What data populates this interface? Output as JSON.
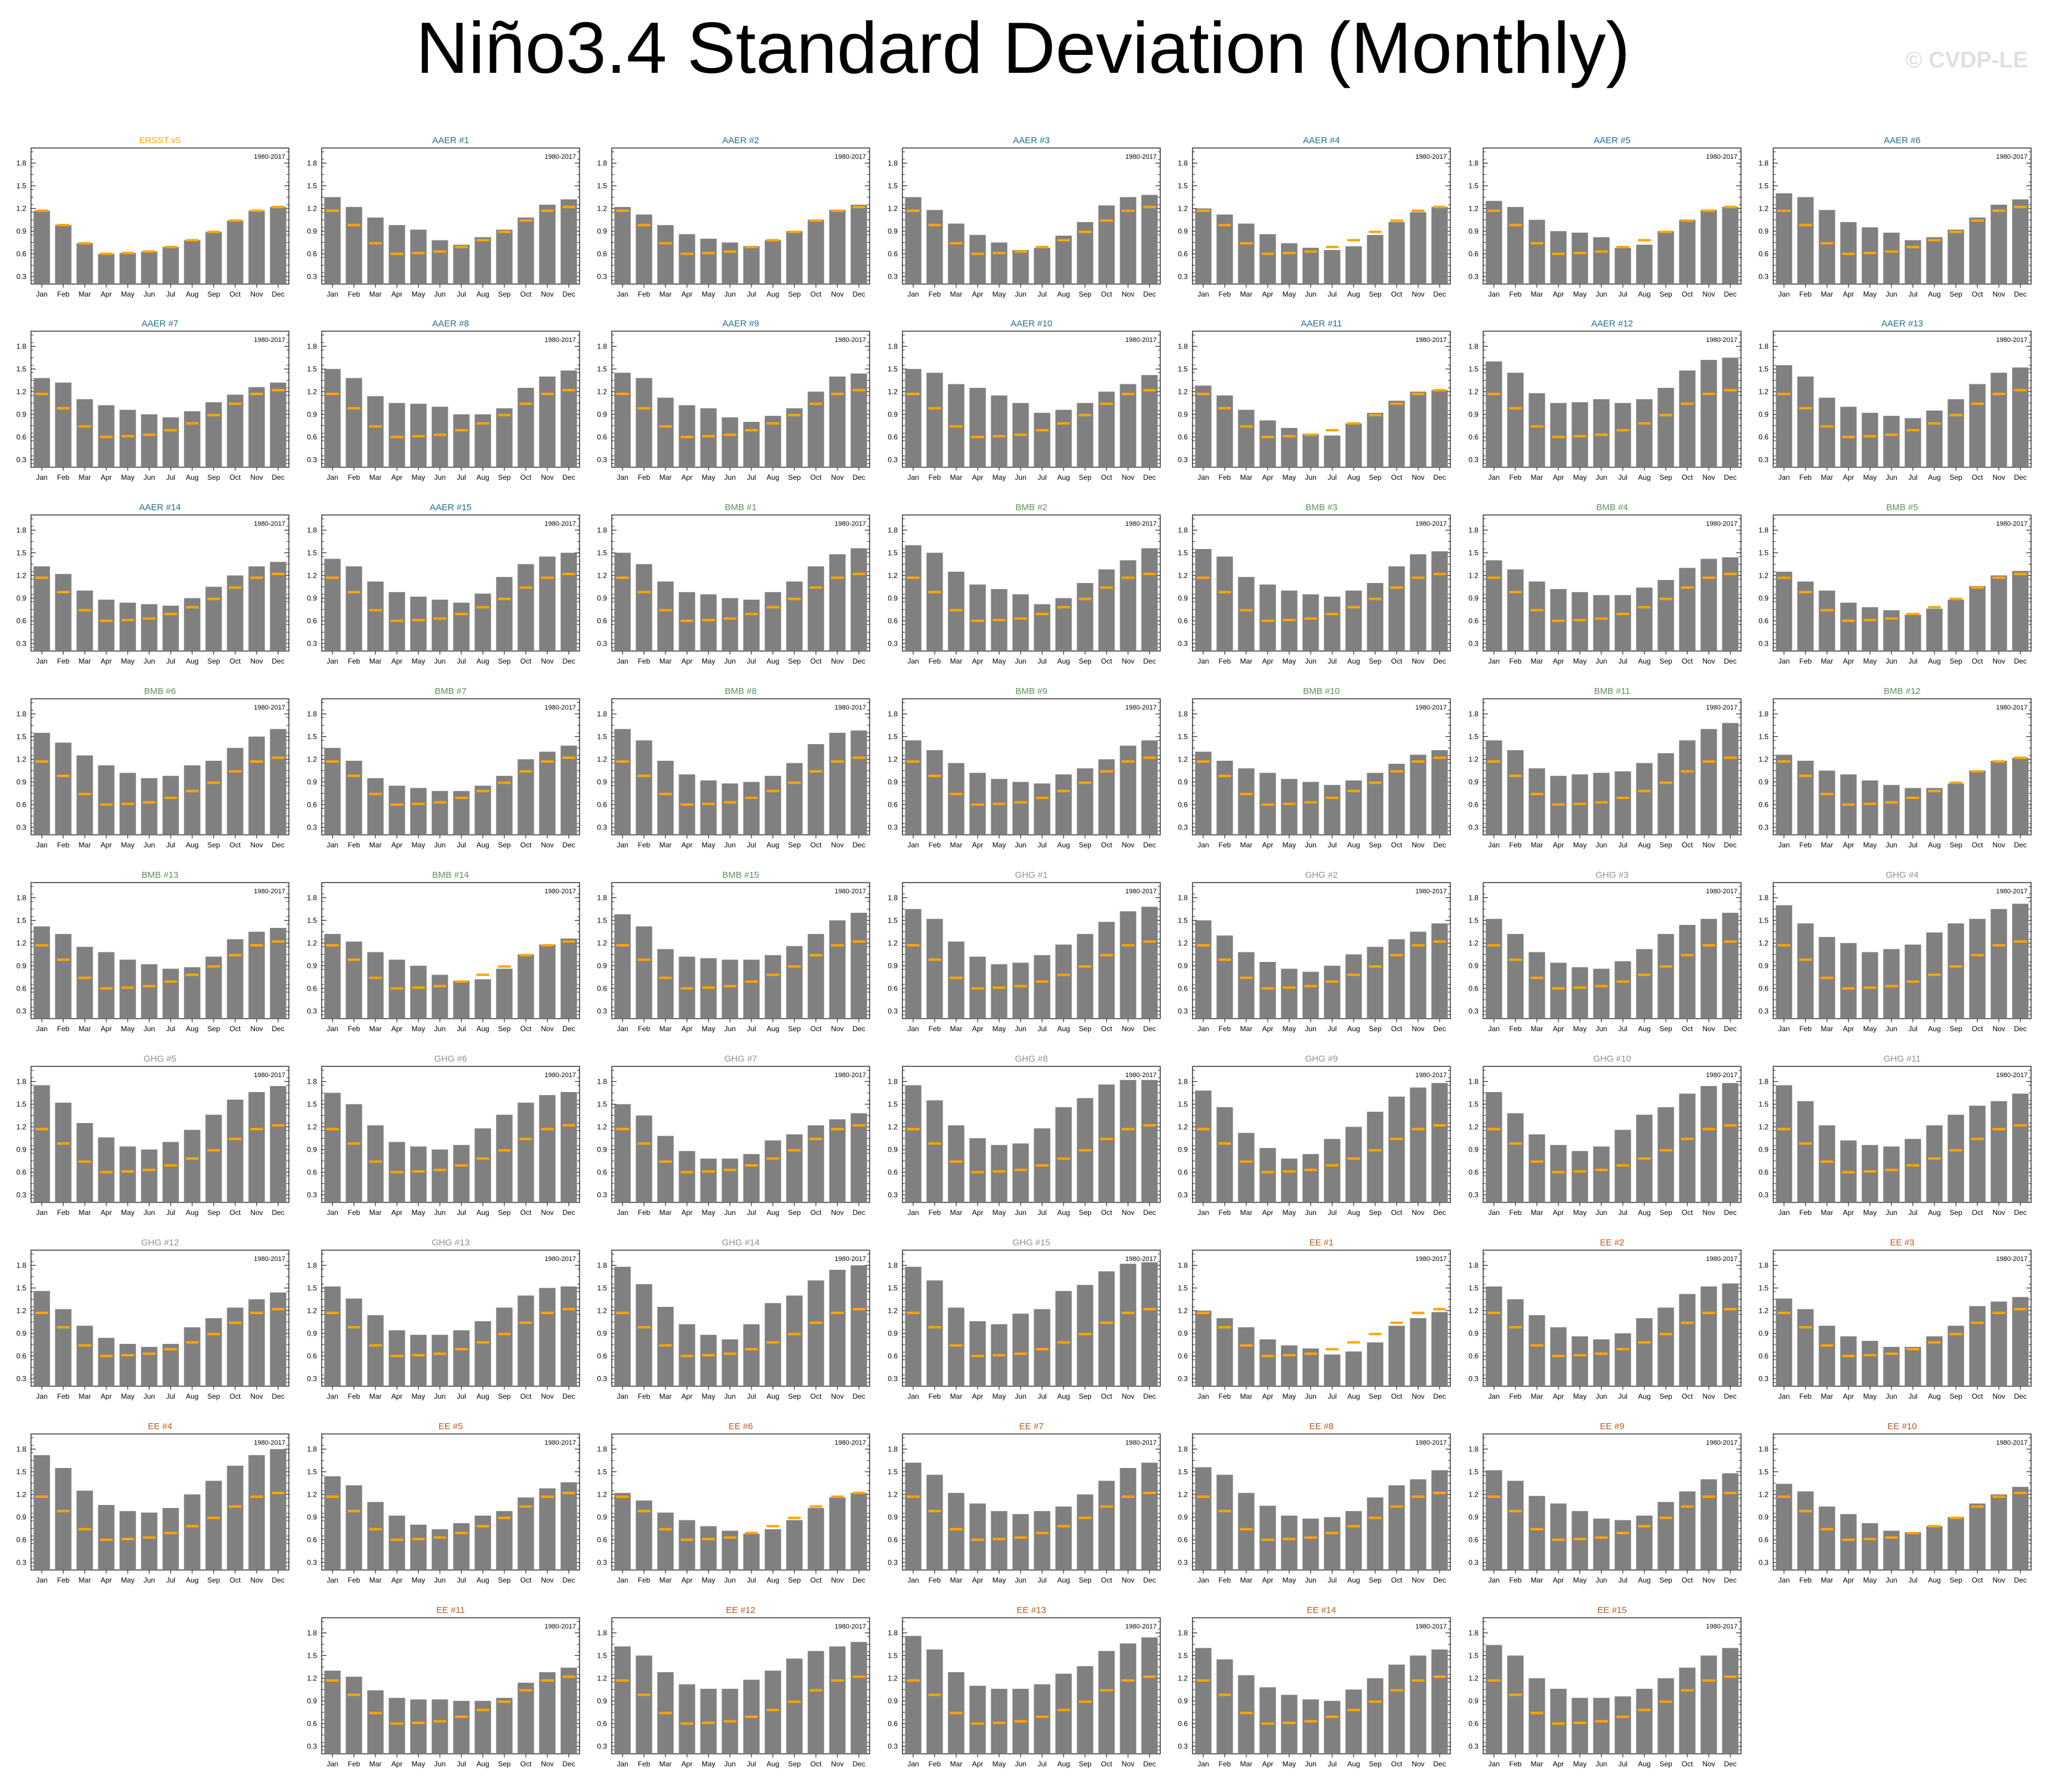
{
  "title": "Niño3.4 Standard Deviation (Monthly)",
  "watermark": "© CVDP-LE",
  "chart_data": {
    "type": "bar",
    "categories": [
      "Jan",
      "Feb",
      "Mar",
      "Apr",
      "May",
      "Jun",
      "Jul",
      "Aug",
      "Sep",
      "Oct",
      "Nov",
      "Dec"
    ],
    "yticks": [
      "0.3",
      "0.6",
      "0.9",
      "1.2",
      "1.5",
      "1.8"
    ],
    "ylim": [
      0.2,
      2.0
    ],
    "period": "1980-2017",
    "bar_color": "#808080",
    "reference_color": "#ffa500",
    "reference_values": [
      1.17,
      0.98,
      0.74,
      0.6,
      0.61,
      0.63,
      0.69,
      0.78,
      0.89,
      1.04,
      1.17,
      1.22
    ],
    "group_colors": {
      "obs": "#ffa500",
      "AAER": "#1f6f8b",
      "BMB": "#5f8f5f",
      "GHG": "#909090",
      "EE": "#b85a1e"
    },
    "panels": [
      {
        "title": "ERSST v5",
        "group": "obs",
        "values": [
          1.17,
          0.98,
          0.74,
          0.6,
          0.61,
          0.63,
          0.69,
          0.78,
          0.89,
          1.04,
          1.17,
          1.22
        ]
      },
      {
        "title": "AAER #1",
        "group": "AAER",
        "values": [
          1.35,
          1.22,
          1.08,
          0.98,
          0.92,
          0.78,
          0.72,
          0.82,
          0.92,
          1.08,
          1.25,
          1.32
        ]
      },
      {
        "title": "AAER #2",
        "group": "AAER",
        "values": [
          1.22,
          1.12,
          0.98,
          0.86,
          0.8,
          0.75,
          0.7,
          0.78,
          0.9,
          1.05,
          1.18,
          1.25
        ]
      },
      {
        "title": "AAER #3",
        "group": "AAER",
        "values": [
          1.35,
          1.18,
          1.0,
          0.85,
          0.75,
          0.65,
          0.68,
          0.84,
          1.02,
          1.24,
          1.35,
          1.38
        ]
      },
      {
        "title": "AAER #4",
        "group": "AAER",
        "values": [
          1.2,
          1.12,
          1.0,
          0.86,
          0.74,
          0.68,
          0.65,
          0.7,
          0.85,
          1.02,
          1.15,
          1.22
        ]
      },
      {
        "title": "AAER #5",
        "group": "AAER",
        "values": [
          1.3,
          1.22,
          1.05,
          0.9,
          0.88,
          0.82,
          0.68,
          0.72,
          0.9,
          1.05,
          1.18,
          1.22
        ]
      },
      {
        "title": "AAER #6",
        "group": "AAER",
        "values": [
          1.4,
          1.35,
          1.18,
          1.02,
          0.95,
          0.88,
          0.78,
          0.82,
          0.92,
          1.08,
          1.25,
          1.32
        ]
      },
      {
        "title": "AAER #7",
        "group": "AAER",
        "values": [
          1.38,
          1.32,
          1.1,
          1.02,
          0.96,
          0.9,
          0.86,
          0.94,
          1.06,
          1.16,
          1.26,
          1.32
        ]
      },
      {
        "title": "AAER #8",
        "group": "AAER",
        "values": [
          1.5,
          1.38,
          1.14,
          1.05,
          1.04,
          1.0,
          0.9,
          0.9,
          0.98,
          1.25,
          1.4,
          1.48
        ]
      },
      {
        "title": "AAER #9",
        "group": "AAER",
        "values": [
          1.45,
          1.38,
          1.12,
          1.02,
          0.98,
          0.86,
          0.8,
          0.88,
          0.98,
          1.2,
          1.4,
          1.44
        ]
      },
      {
        "title": "AAER #10",
        "group": "AAER",
        "values": [
          1.5,
          1.45,
          1.3,
          1.25,
          1.15,
          1.05,
          0.92,
          0.96,
          1.05,
          1.2,
          1.3,
          1.42
        ]
      },
      {
        "title": "AAER #11",
        "group": "AAER",
        "values": [
          1.28,
          1.15,
          0.96,
          0.82,
          0.72,
          0.64,
          0.62,
          0.78,
          0.92,
          1.08,
          1.2,
          1.22
        ]
      },
      {
        "title": "AAER #12",
        "group": "AAER",
        "values": [
          1.6,
          1.45,
          1.18,
          1.05,
          1.06,
          1.1,
          1.05,
          1.1,
          1.25,
          1.48,
          1.62,
          1.65
        ]
      },
      {
        "title": "AAER #13",
        "group": "AAER",
        "values": [
          1.55,
          1.4,
          1.12,
          1.0,
          0.92,
          0.88,
          0.85,
          0.95,
          1.1,
          1.3,
          1.45,
          1.52
        ]
      },
      {
        "title": "AAER #14",
        "group": "AAER",
        "values": [
          1.32,
          1.22,
          1.0,
          0.88,
          0.84,
          0.82,
          0.8,
          0.9,
          1.05,
          1.2,
          1.32,
          1.38
        ]
      },
      {
        "title": "AAER #15",
        "group": "AAER",
        "values": [
          1.42,
          1.32,
          1.12,
          0.98,
          0.92,
          0.88,
          0.84,
          0.96,
          1.18,
          1.35,
          1.45,
          1.5
        ]
      },
      {
        "title": "BMB #1",
        "group": "BMB",
        "values": [
          1.5,
          1.35,
          1.12,
          0.98,
          0.95,
          0.9,
          0.88,
          0.98,
          1.12,
          1.32,
          1.48,
          1.56
        ]
      },
      {
        "title": "BMB #2",
        "group": "BMB",
        "values": [
          1.6,
          1.5,
          1.25,
          1.08,
          1.02,
          0.95,
          0.82,
          0.9,
          1.1,
          1.28,
          1.4,
          1.56
        ]
      },
      {
        "title": "BMB #3",
        "group": "BMB",
        "values": [
          1.55,
          1.45,
          1.18,
          1.08,
          1.0,
          0.95,
          0.92,
          1.0,
          1.1,
          1.32,
          1.48,
          1.52
        ]
      },
      {
        "title": "BMB #4",
        "group": "BMB",
        "values": [
          1.4,
          1.28,
          1.12,
          1.02,
          0.98,
          0.94,
          0.94,
          1.04,
          1.14,
          1.3,
          1.42,
          1.44
        ]
      },
      {
        "title": "BMB #5",
        "group": "BMB",
        "values": [
          1.25,
          1.12,
          1.0,
          0.84,
          0.78,
          0.74,
          0.68,
          0.76,
          0.88,
          1.06,
          1.2,
          1.26
        ]
      },
      {
        "title": "BMB #6",
        "group": "BMB",
        "values": [
          1.55,
          1.42,
          1.25,
          1.12,
          1.02,
          0.95,
          0.98,
          1.12,
          1.18,
          1.35,
          1.5,
          1.6
        ]
      },
      {
        "title": "BMB #7",
        "group": "BMB",
        "values": [
          1.35,
          1.18,
          0.95,
          0.85,
          0.82,
          0.78,
          0.78,
          0.85,
          0.98,
          1.2,
          1.3,
          1.38
        ]
      },
      {
        "title": "BMB #8",
        "group": "BMB",
        "values": [
          1.6,
          1.45,
          1.18,
          1.0,
          0.92,
          0.88,
          0.9,
          0.98,
          1.15,
          1.4,
          1.55,
          1.58
        ]
      },
      {
        "title": "BMB #9",
        "group": "BMB",
        "values": [
          1.45,
          1.32,
          1.15,
          1.02,
          0.94,
          0.9,
          0.88,
          1.0,
          1.08,
          1.2,
          1.38,
          1.45
        ]
      },
      {
        "title": "BMB #10",
        "group": "BMB",
        "values": [
          1.3,
          1.18,
          1.08,
          1.02,
          0.94,
          0.9,
          0.86,
          0.92,
          1.02,
          1.14,
          1.26,
          1.32
        ]
      },
      {
        "title": "BMB #11",
        "group": "BMB",
        "values": [
          1.45,
          1.32,
          1.08,
          0.98,
          1.0,
          1.02,
          1.04,
          1.15,
          1.28,
          1.45,
          1.6,
          1.68
        ]
      },
      {
        "title": "BMB #12",
        "group": "BMB",
        "values": [
          1.26,
          1.18,
          1.05,
          1.0,
          0.92,
          0.86,
          0.82,
          0.82,
          0.88,
          1.05,
          1.18,
          1.22
        ]
      },
      {
        "title": "BMB #13",
        "group": "BMB",
        "values": [
          1.42,
          1.32,
          1.15,
          1.08,
          0.98,
          0.92,
          0.86,
          0.88,
          1.02,
          1.25,
          1.35,
          1.4
        ]
      },
      {
        "title": "BMB #14",
        "group": "BMB",
        "values": [
          1.32,
          1.22,
          1.08,
          0.98,
          0.9,
          0.78,
          0.7,
          0.72,
          0.86,
          1.05,
          1.18,
          1.26
        ]
      },
      {
        "title": "BMB #15",
        "group": "BMB",
        "values": [
          1.58,
          1.42,
          1.12,
          1.02,
          1.0,
          0.98,
          0.98,
          1.04,
          1.16,
          1.32,
          1.5,
          1.6
        ]
      },
      {
        "title": "GHG #1",
        "group": "GHG",
        "values": [
          1.65,
          1.52,
          1.22,
          1.02,
          0.92,
          0.94,
          1.04,
          1.18,
          1.32,
          1.48,
          1.62,
          1.68
        ]
      },
      {
        "title": "GHG #2",
        "group": "GHG",
        "values": [
          1.5,
          1.3,
          1.08,
          0.95,
          0.86,
          0.82,
          0.9,
          1.05,
          1.15,
          1.25,
          1.35,
          1.46
        ]
      },
      {
        "title": "GHG #3",
        "group": "GHG",
        "values": [
          1.52,
          1.32,
          1.08,
          0.94,
          0.88,
          0.86,
          0.96,
          1.12,
          1.32,
          1.44,
          1.52,
          1.6
        ]
      },
      {
        "title": "GHG #4",
        "group": "GHG",
        "values": [
          1.7,
          1.46,
          1.28,
          1.2,
          1.08,
          1.12,
          1.18,
          1.34,
          1.46,
          1.52,
          1.65,
          1.72
        ]
      },
      {
        "title": "GHG #5",
        "group": "GHG",
        "values": [
          1.75,
          1.52,
          1.25,
          1.06,
          0.94,
          0.9,
          1.0,
          1.16,
          1.36,
          1.56,
          1.66,
          1.74
        ]
      },
      {
        "title": "GHG #6",
        "group": "GHG",
        "values": [
          1.65,
          1.5,
          1.22,
          1.0,
          0.94,
          0.9,
          0.96,
          1.18,
          1.36,
          1.52,
          1.62,
          1.66
        ]
      },
      {
        "title": "GHG #7",
        "group": "GHG",
        "values": [
          1.5,
          1.35,
          1.08,
          0.88,
          0.78,
          0.78,
          0.84,
          1.02,
          1.1,
          1.22,
          1.3,
          1.38
        ]
      },
      {
        "title": "GHG #8",
        "group": "GHG",
        "values": [
          1.75,
          1.55,
          1.22,
          1.05,
          0.96,
          0.98,
          1.18,
          1.46,
          1.58,
          1.76,
          1.82,
          1.82
        ]
      },
      {
        "title": "GHG #9",
        "group": "GHG",
        "values": [
          1.68,
          1.46,
          1.12,
          0.92,
          0.78,
          0.84,
          1.04,
          1.2,
          1.4,
          1.6,
          1.72,
          1.78
        ]
      },
      {
        "title": "GHG #10",
        "group": "GHG",
        "values": [
          1.66,
          1.38,
          1.1,
          0.96,
          0.88,
          0.94,
          1.16,
          1.36,
          1.46,
          1.64,
          1.74,
          1.78
        ]
      },
      {
        "title": "GHG #11",
        "group": "GHG",
        "values": [
          1.75,
          1.54,
          1.22,
          1.02,
          0.96,
          0.94,
          1.04,
          1.22,
          1.36,
          1.48,
          1.54,
          1.64
        ]
      },
      {
        "title": "GHG #12",
        "group": "GHG",
        "values": [
          1.46,
          1.22,
          1.0,
          0.84,
          0.76,
          0.72,
          0.76,
          0.98,
          1.1,
          1.24,
          1.35,
          1.44
        ]
      },
      {
        "title": "GHG #13",
        "group": "GHG",
        "values": [
          1.52,
          1.36,
          1.14,
          0.94,
          0.88,
          0.88,
          0.94,
          1.06,
          1.24,
          1.4,
          1.5,
          1.52
        ]
      },
      {
        "title": "GHG #14",
        "group": "GHG",
        "values": [
          1.78,
          1.55,
          1.25,
          1.02,
          0.88,
          0.82,
          1.02,
          1.3,
          1.4,
          1.6,
          1.74,
          1.8
        ]
      },
      {
        "title": "GHG #15",
        "group": "GHG",
        "values": [
          1.78,
          1.6,
          1.24,
          1.06,
          1.02,
          1.16,
          1.22,
          1.46,
          1.54,
          1.72,
          1.82,
          1.84
        ]
      },
      {
        "title": "EE #1",
        "group": "EE",
        "values": [
          1.2,
          1.1,
          0.98,
          0.82,
          0.74,
          0.7,
          0.62,
          0.66,
          0.78,
          1.0,
          1.1,
          1.18
        ]
      },
      {
        "title": "EE #2",
        "group": "EE",
        "values": [
          1.52,
          1.35,
          1.14,
          0.98,
          0.86,
          0.82,
          0.9,
          1.1,
          1.24,
          1.42,
          1.52,
          1.56
        ]
      },
      {
        "title": "EE #3",
        "group": "EE",
        "values": [
          1.36,
          1.22,
          1.0,
          0.86,
          0.8,
          0.72,
          0.72,
          0.86,
          1.0,
          1.26,
          1.32,
          1.38
        ]
      },
      {
        "title": "EE #4",
        "group": "EE",
        "values": [
          1.72,
          1.55,
          1.25,
          1.06,
          0.98,
          0.96,
          1.02,
          1.2,
          1.38,
          1.58,
          1.72,
          1.8
        ]
      },
      {
        "title": "EE #5",
        "group": "EE",
        "values": [
          1.44,
          1.32,
          1.1,
          0.92,
          0.8,
          0.74,
          0.82,
          0.92,
          0.98,
          1.16,
          1.28,
          1.36
        ]
      },
      {
        "title": "EE #6",
        "group": "EE",
        "values": [
          1.22,
          1.12,
          0.96,
          0.86,
          0.78,
          0.72,
          0.68,
          0.74,
          0.86,
          1.02,
          1.16,
          1.22
        ]
      },
      {
        "title": "EE #7",
        "group": "EE",
        "values": [
          1.62,
          1.46,
          1.22,
          1.08,
          0.98,
          0.94,
          0.98,
          1.04,
          1.2,
          1.38,
          1.55,
          1.62
        ]
      },
      {
        "title": "EE #8",
        "group": "EE",
        "values": [
          1.56,
          1.46,
          1.22,
          1.05,
          0.92,
          0.88,
          0.9,
          0.98,
          1.16,
          1.32,
          1.4,
          1.52
        ]
      },
      {
        "title": "EE #9",
        "group": "EE",
        "values": [
          1.52,
          1.38,
          1.18,
          1.08,
          0.98,
          0.88,
          0.86,
          0.92,
          1.1,
          1.24,
          1.4,
          1.48
        ]
      },
      {
        "title": "EE #10",
        "group": "EE",
        "values": [
          1.34,
          1.24,
          1.04,
          0.94,
          0.82,
          0.72,
          0.7,
          0.78,
          0.9,
          1.08,
          1.2,
          1.3
        ]
      },
      {
        "title": "EE #11",
        "group": "EE",
        "values": [
          1.3,
          1.22,
          1.04,
          0.94,
          0.92,
          0.92,
          0.9,
          0.9,
          0.94,
          1.14,
          1.28,
          1.34
        ]
      },
      {
        "title": "EE #12",
        "group": "EE",
        "values": [
          1.62,
          1.5,
          1.28,
          1.12,
          1.06,
          1.06,
          1.18,
          1.3,
          1.46,
          1.56,
          1.62,
          1.68
        ]
      },
      {
        "title": "EE #13",
        "group": "EE",
        "values": [
          1.76,
          1.58,
          1.28,
          1.1,
          1.06,
          1.06,
          1.12,
          1.26,
          1.36,
          1.56,
          1.66,
          1.74
        ]
      },
      {
        "title": "EE #14",
        "group": "EE",
        "values": [
          1.6,
          1.45,
          1.24,
          1.08,
          0.98,
          0.92,
          0.9,
          1.05,
          1.2,
          1.38,
          1.5,
          1.58
        ]
      },
      {
        "title": "EE #15",
        "group": "EE",
        "values": [
          1.64,
          1.5,
          1.2,
          1.06,
          0.94,
          0.94,
          0.96,
          1.06,
          1.2,
          1.34,
          1.5,
          1.6
        ]
      }
    ]
  }
}
